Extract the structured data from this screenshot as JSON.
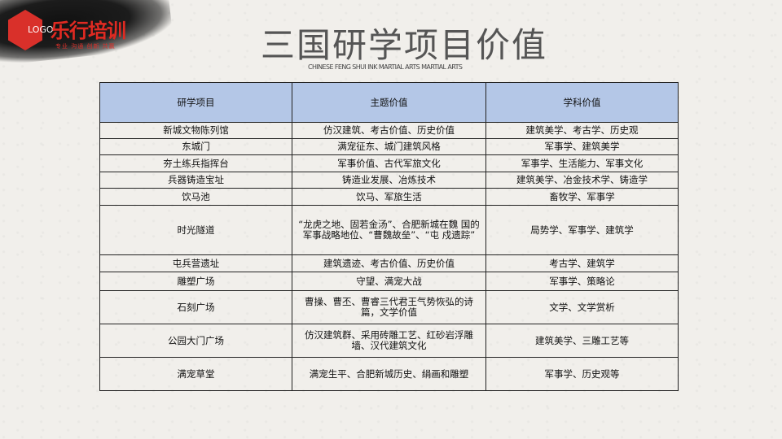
{
  "logo": {
    "mark": "LOGO",
    "brand": "乐行培训",
    "tagline": "专业 沟通 创新 共赢"
  },
  "title": "三国研学项目价值",
  "subtitle": "CHINESE FENG SHUI INK MARTIAL ARTS MARTIAL ARTS",
  "table": {
    "headers": [
      "研学项目",
      "主题价值",
      "学科价值"
    ],
    "rows": [
      [
        "新城文物陈列馆",
        "仿汉建筑、考古价值、历史价值",
        "建筑美学、考古学、历史观"
      ],
      [
        "东城门",
        "满宠征东、城门建筑风格",
        "军事学、建筑美学"
      ],
      [
        "夯土练兵指挥台",
        "军事价值、古代军旅文化",
        "军事学、生活能力、军事文化"
      ],
      [
        "兵器铸造宝址",
        "铸造业发展、冶炼技术",
        "建筑美学、冶金技术学、铸造学"
      ],
      [
        "饮马池",
        "饮马、军旅生活",
        "畜牧学、军事学"
      ],
      [
        "时光隧道",
        "“龙虎之地、固若金汤”、合肥新城在魏 国的军事战略地位、“曹魏故垒”、“屯 戍遗踪”",
        "局势学、军事学、建筑学"
      ],
      [
        "屯兵营遗址",
        "建筑遗迹、考古价值、历史价值",
        "考古学、建筑学"
      ],
      [
        "雕塑广场",
        "守望、满宠大战",
        "军事学、策略论"
      ],
      [
        "石刻广场",
        "曹操、曹丕、曹睿三代君王气势恢弘的诗篇，文学价值",
        "文学、文学赏析"
      ],
      [
        "公园大门广场",
        "仿汉建筑群、采用砖雕工艺、红砂岩浮雕墙、汉代建筑文化",
        "建筑美学、三雕工艺等"
      ],
      [
        "满宠草堂",
        "满宠生平、合肥新城历史、绢画和雕塑",
        "军事学、历史观等"
      ]
    ]
  },
  "colors": {
    "header_bg": "#b4c7e7",
    "brand": "#e02a22"
  }
}
